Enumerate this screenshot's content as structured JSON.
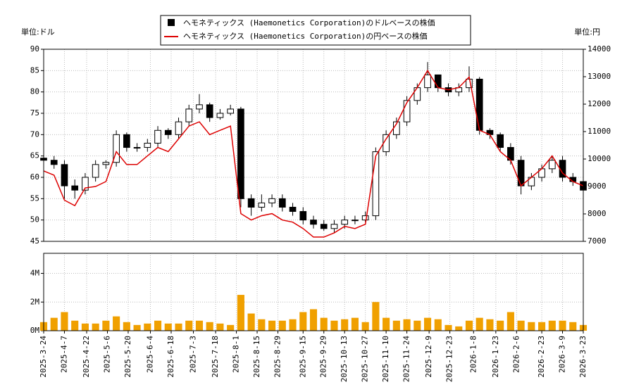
{
  "chart_data": [
    {
      "type": "candlestick",
      "y_unit_label": "単位:ドル",
      "y2_unit_label": "単位:円",
      "x": [
        "2025-03-24",
        "2025-03-31",
        "2025-04-07",
        "2025-04-14",
        "2025-04-21",
        "2025-04-28",
        "2025-05-05",
        "2025-05-12",
        "2025-05-19",
        "2025-05-26",
        "2025-06-02",
        "2025-06-09",
        "2025-06-16",
        "2025-06-23",
        "2025-06-30",
        "2025-07-07",
        "2025-07-14",
        "2025-07-21",
        "2025-07-28",
        "2025-08-04",
        "2025-08-11",
        "2025-08-18",
        "2025-08-25",
        "2025-09-01",
        "2025-09-08",
        "2025-09-15",
        "2025-09-22",
        "2025-09-29",
        "2025-10-06",
        "2025-10-13",
        "2025-10-20",
        "2025-10-27",
        "2025-11-03",
        "2025-11-10",
        "2025-11-17",
        "2025-11-24",
        "2025-12-01",
        "2025-12-08",
        "2025-12-15",
        "2025-12-22",
        "2025-12-29",
        "2026-01-05",
        "2026-01-12",
        "2026-01-19",
        "2026-01-26",
        "2026-02-02",
        "2026-02-09",
        "2026-02-16",
        "2026-02-23",
        "2026-03-02",
        "2026-03-09",
        "2026-03-16",
        "2026-03-23"
      ],
      "xlim": [
        "2025-03-24",
        "2026-03-23"
      ],
      "xticks": [
        "2025-3-24",
        "2025-4-7",
        "2025-4-22",
        "2025-5-6",
        "2025-5-20",
        "2025-6-4",
        "2025-6-18",
        "2025-7-3",
        "2025-7-18",
        "2025-8-1",
        "2025-8-15",
        "2025-8-29",
        "2025-9-15",
        "2025-9-29",
        "2025-10-13",
        "2025-10-27",
        "2025-11-10",
        "2025-11-24",
        "2025-12-9",
        "2025-12-23",
        "2026-1-8",
        "2026-1-23",
        "2026-2-6",
        "2026-2-23",
        "2026-3-9",
        "2026-3-23"
      ],
      "ylim": [
        45,
        90
      ],
      "yticks": [
        45,
        50,
        55,
        60,
        65,
        70,
        75,
        80,
        85,
        90
      ],
      "y2lim": [
        7000,
        14000
      ],
      "y2ticks": [
        7000,
        8000,
        9000,
        10000,
        11000,
        12000,
        13000,
        14000
      ],
      "grid": true,
      "series": [
        {
          "name": "ヘモネティックス (Haemonetics Corporation)のドルベースの株価",
          "color": "#000000",
          "open": [
            64.5,
            64,
            63,
            58,
            57,
            60,
            63,
            63.5,
            70,
            67,
            67,
            68,
            71,
            70,
            73,
            76,
            77,
            74,
            75,
            76,
            55,
            53,
            54,
            55,
            53,
            52,
            50,
            49,
            48,
            49,
            50,
            50,
            51,
            66,
            70,
            73,
            78,
            81,
            84,
            81,
            80,
            81,
            83,
            71,
            70,
            67,
            64,
            58,
            60,
            62,
            64,
            60,
            59
          ],
          "high": [
            65.5,
            65,
            64,
            59.5,
            61,
            64,
            64,
            71,
            70.5,
            68,
            69,
            72,
            71.5,
            74,
            77,
            79.5,
            77.5,
            76,
            77,
            76.5,
            56,
            56,
            56,
            56,
            54,
            53,
            51,
            50,
            50,
            51,
            51,
            52,
            67,
            71,
            74,
            79,
            82,
            87,
            84,
            82,
            82,
            86,
            83.5,
            71.5,
            70.5,
            68,
            65,
            61,
            63,
            65,
            65,
            61,
            60
          ],
          "low": [
            63,
            62,
            55,
            55,
            56,
            59,
            62,
            62.5,
            66,
            66,
            66,
            67,
            69,
            69,
            72,
            75,
            73,
            73.5,
            74.5,
            53,
            51,
            52,
            53,
            52,
            51,
            49,
            48,
            47.5,
            47,
            48,
            49,
            49.5,
            50,
            65,
            69,
            72,
            77,
            80,
            80,
            79,
            79,
            80,
            70,
            69,
            66,
            63,
            56,
            57,
            59,
            61,
            59,
            58,
            56.5
          ],
          "close": [
            64,
            63,
            58,
            57,
            60,
            63,
            63.5,
            70,
            67,
            67,
            68,
            71,
            70,
            73,
            76,
            77,
            74,
            75,
            76,
            55,
            53,
            54,
            55,
            53,
            52,
            50,
            49,
            48,
            49,
            50,
            50,
            51,
            66,
            70,
            73,
            78,
            81,
            84,
            81,
            80,
            81,
            83,
            71,
            70,
            67,
            64,
            58,
            60,
            62,
            64,
            60,
            59,
            57
          ]
        },
        {
          "name": "ヘモネティックス (Haemonetics Corporation)の円ベースの株価",
          "color": "#dd0000",
          "axis": "y2",
          "values": [
            9567,
            9412,
            8500,
            8300,
            8945,
            9000,
            9180,
            10268,
            9800,
            9800,
            10112,
            10423,
            10268,
            10734,
            11200,
            11357,
            10890,
            11046,
            11200,
            8011,
            7778,
            7934,
            8011,
            7778,
            7700,
            7467,
            7156,
            7156,
            7311,
            7545,
            7467,
            7622,
            10112,
            10734,
            11279,
            12057,
            12602,
            13224,
            12602,
            12524,
            12602,
            12990,
            11046,
            10890,
            10268,
            9956,
            9023,
            9334,
            9645,
            10112,
            9490,
            9178,
            9023
          ]
        }
      ]
    },
    {
      "type": "bar",
      "color": "#f0a000",
      "values": [
        600000,
        900000,
        1300000,
        700000,
        500000,
        500000,
        700000,
        1000000,
        600000,
        400000,
        500000,
        700000,
        500000,
        500000,
        700000,
        700000,
        600000,
        500000,
        400000,
        2500000,
        1200000,
        800000,
        700000,
        700000,
        800000,
        1300000,
        1500000,
        900000,
        700000,
        800000,
        900000,
        600000,
        2000000,
        900000,
        700000,
        800000,
        700000,
        900000,
        800000,
        400000,
        300000,
        700000,
        900000,
        800000,
        700000,
        1300000,
        700000,
        600000,
        600000,
        700000,
        700000,
        600000,
        400000
      ],
      "ylim": [
        0,
        5400000
      ],
      "yticks": [
        {
          "value": 0,
          "label": "0M"
        },
        {
          "value": 2000000,
          "label": "2M"
        },
        {
          "value": 4000000,
          "label": "4M"
        }
      ],
      "grid": true
    }
  ]
}
